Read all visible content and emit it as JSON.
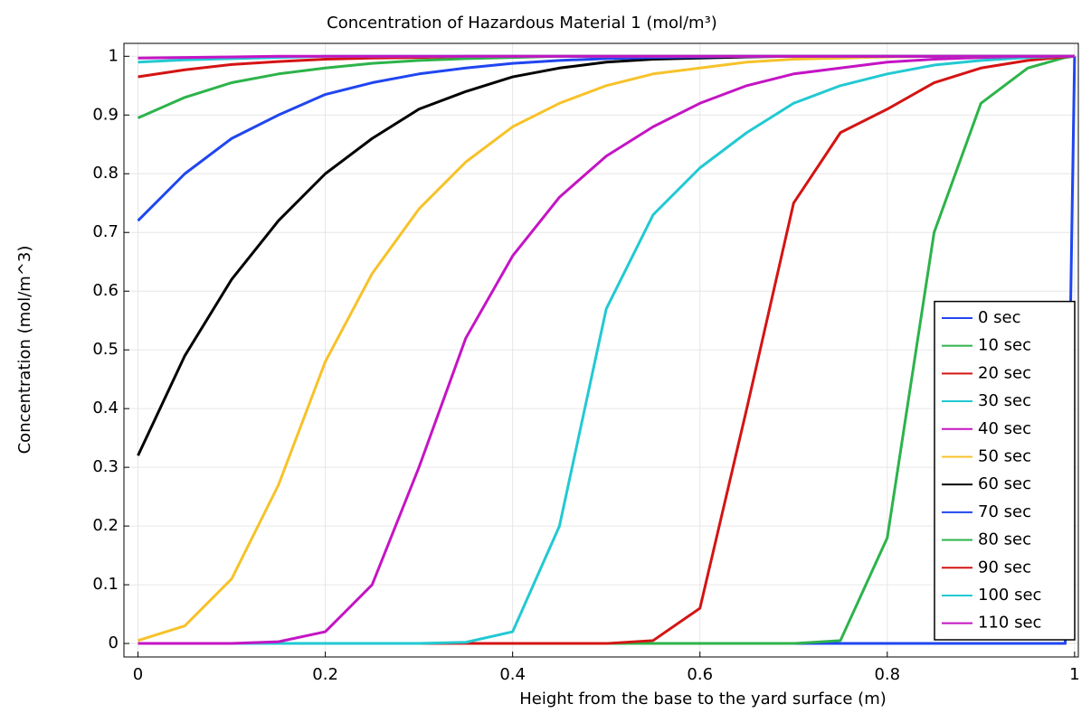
{
  "chart_data": {
    "type": "line",
    "title": "Concentration of Hazardous Material 1 (mol/m³)",
    "xlabel": "Height from the base to the yard surface (m)",
    "ylabel": "Concentration (mol/m^3)",
    "x": [
      0,
      0.05,
      0.1,
      0.15,
      0.2,
      0.25,
      0.3,
      0.35,
      0.4,
      0.45,
      0.5,
      0.55,
      0.6,
      0.65,
      0.7,
      0.75,
      0.8,
      0.85,
      0.9,
      0.95,
      0.99,
      1
    ],
    "xlim": [
      -0.015,
      1.004
    ],
    "ylim": [
      -0.023,
      1.022
    ],
    "xticks": [
      0,
      0.2,
      0.4,
      0.6,
      0.8,
      1
    ],
    "yticks": [
      0,
      0.1,
      0.2,
      0.3,
      0.4,
      0.5,
      0.6,
      0.7,
      0.8,
      0.9,
      1
    ],
    "grid": true,
    "legend": "lower right",
    "series": [
      {
        "name": "0 sec",
        "color": "#2046f0",
        "values": [
          0,
          0,
          0,
          0,
          0,
          0,
          0,
          0,
          0,
          0,
          0,
          0,
          0,
          0,
          0,
          0,
          0,
          0,
          0,
          0,
          0,
          1
        ]
      },
      {
        "name": "10 sec",
        "color": "#2db34a",
        "values": [
          0,
          0,
          0,
          0,
          0,
          0,
          0,
          0,
          0,
          0,
          0,
          0,
          0,
          0,
          0,
          0.005,
          0.18,
          0.7,
          0.92,
          0.98,
          0.998,
          1
        ]
      },
      {
        "name": "20 sec",
        "color": "#d41414",
        "values": [
          0,
          0,
          0,
          0,
          0,
          0,
          0,
          0,
          0,
          0,
          0,
          0.005,
          0.06,
          0.4,
          0.75,
          0.87,
          0.91,
          0.955,
          0.98,
          0.993,
          0.999,
          1
        ]
      },
      {
        "name": "30 sec",
        "color": "#22c9d2",
        "values": [
          0,
          0,
          0,
          0,
          0,
          0,
          0,
          0.002,
          0.02,
          0.2,
          0.57,
          0.73,
          0.81,
          0.87,
          0.92,
          0.95,
          0.97,
          0.985,
          0.993,
          0.998,
          1,
          1
        ]
      },
      {
        "name": "40 sec",
        "color": "#c414c4",
        "values": [
          0,
          0,
          0,
          0.003,
          0.02,
          0.1,
          0.3,
          0.52,
          0.66,
          0.76,
          0.83,
          0.88,
          0.92,
          0.95,
          0.97,
          0.98,
          0.99,
          0.995,
          0.998,
          1,
          1,
          1
        ]
      },
      {
        "name": "50 sec",
        "color": "#f7c22a",
        "values": [
          0.005,
          0.03,
          0.11,
          0.27,
          0.48,
          0.63,
          0.74,
          0.82,
          0.88,
          0.92,
          0.95,
          0.97,
          0.98,
          0.99,
          0.995,
          0.997,
          0.999,
          1,
          1,
          1,
          1,
          1
        ]
      },
      {
        "name": "60 sec",
        "color": "#000000",
        "values": [
          0.32,
          0.49,
          0.62,
          0.72,
          0.8,
          0.86,
          0.91,
          0.94,
          0.965,
          0.98,
          0.99,
          0.995,
          0.997,
          0.999,
          1,
          1,
          1,
          1,
          1,
          1,
          1,
          1
        ]
      },
      {
        "name": "70 sec",
        "color": "#2046f0",
        "values": [
          0.72,
          0.8,
          0.86,
          0.9,
          0.935,
          0.955,
          0.97,
          0.98,
          0.988,
          0.993,
          0.996,
          0.998,
          0.999,
          1,
          1,
          1,
          1,
          1,
          1,
          1,
          1,
          1
        ]
      },
      {
        "name": "80 sec",
        "color": "#2db34a",
        "values": [
          0.895,
          0.93,
          0.955,
          0.97,
          0.98,
          0.988,
          0.993,
          0.996,
          0.998,
          1,
          1,
          1,
          1,
          1,
          1,
          1,
          1,
          1,
          1,
          1,
          1,
          1
        ]
      },
      {
        "name": "90 sec",
        "color": "#d41414",
        "values": [
          0.965,
          0.977,
          0.986,
          0.991,
          0.995,
          0.997,
          0.998,
          1,
          1,
          1,
          1,
          1,
          1,
          1,
          1,
          1,
          1,
          1,
          1,
          1,
          1,
          1
        ]
      },
      {
        "name": "100 sec",
        "color": "#22c9d2",
        "values": [
          0.99,
          0.994,
          0.996,
          0.998,
          1,
          1,
          1,
          1,
          1,
          1,
          1,
          1,
          1,
          1,
          1,
          1,
          1,
          1,
          1,
          1,
          1,
          1
        ]
      },
      {
        "name": "110 sec",
        "color": "#c414c4",
        "values": [
          0.997,
          0.998,
          0.999,
          1,
          1,
          1,
          1,
          1,
          1,
          1,
          1,
          1,
          1,
          1,
          1,
          1,
          1,
          1,
          1,
          1,
          1,
          1
        ]
      }
    ]
  }
}
